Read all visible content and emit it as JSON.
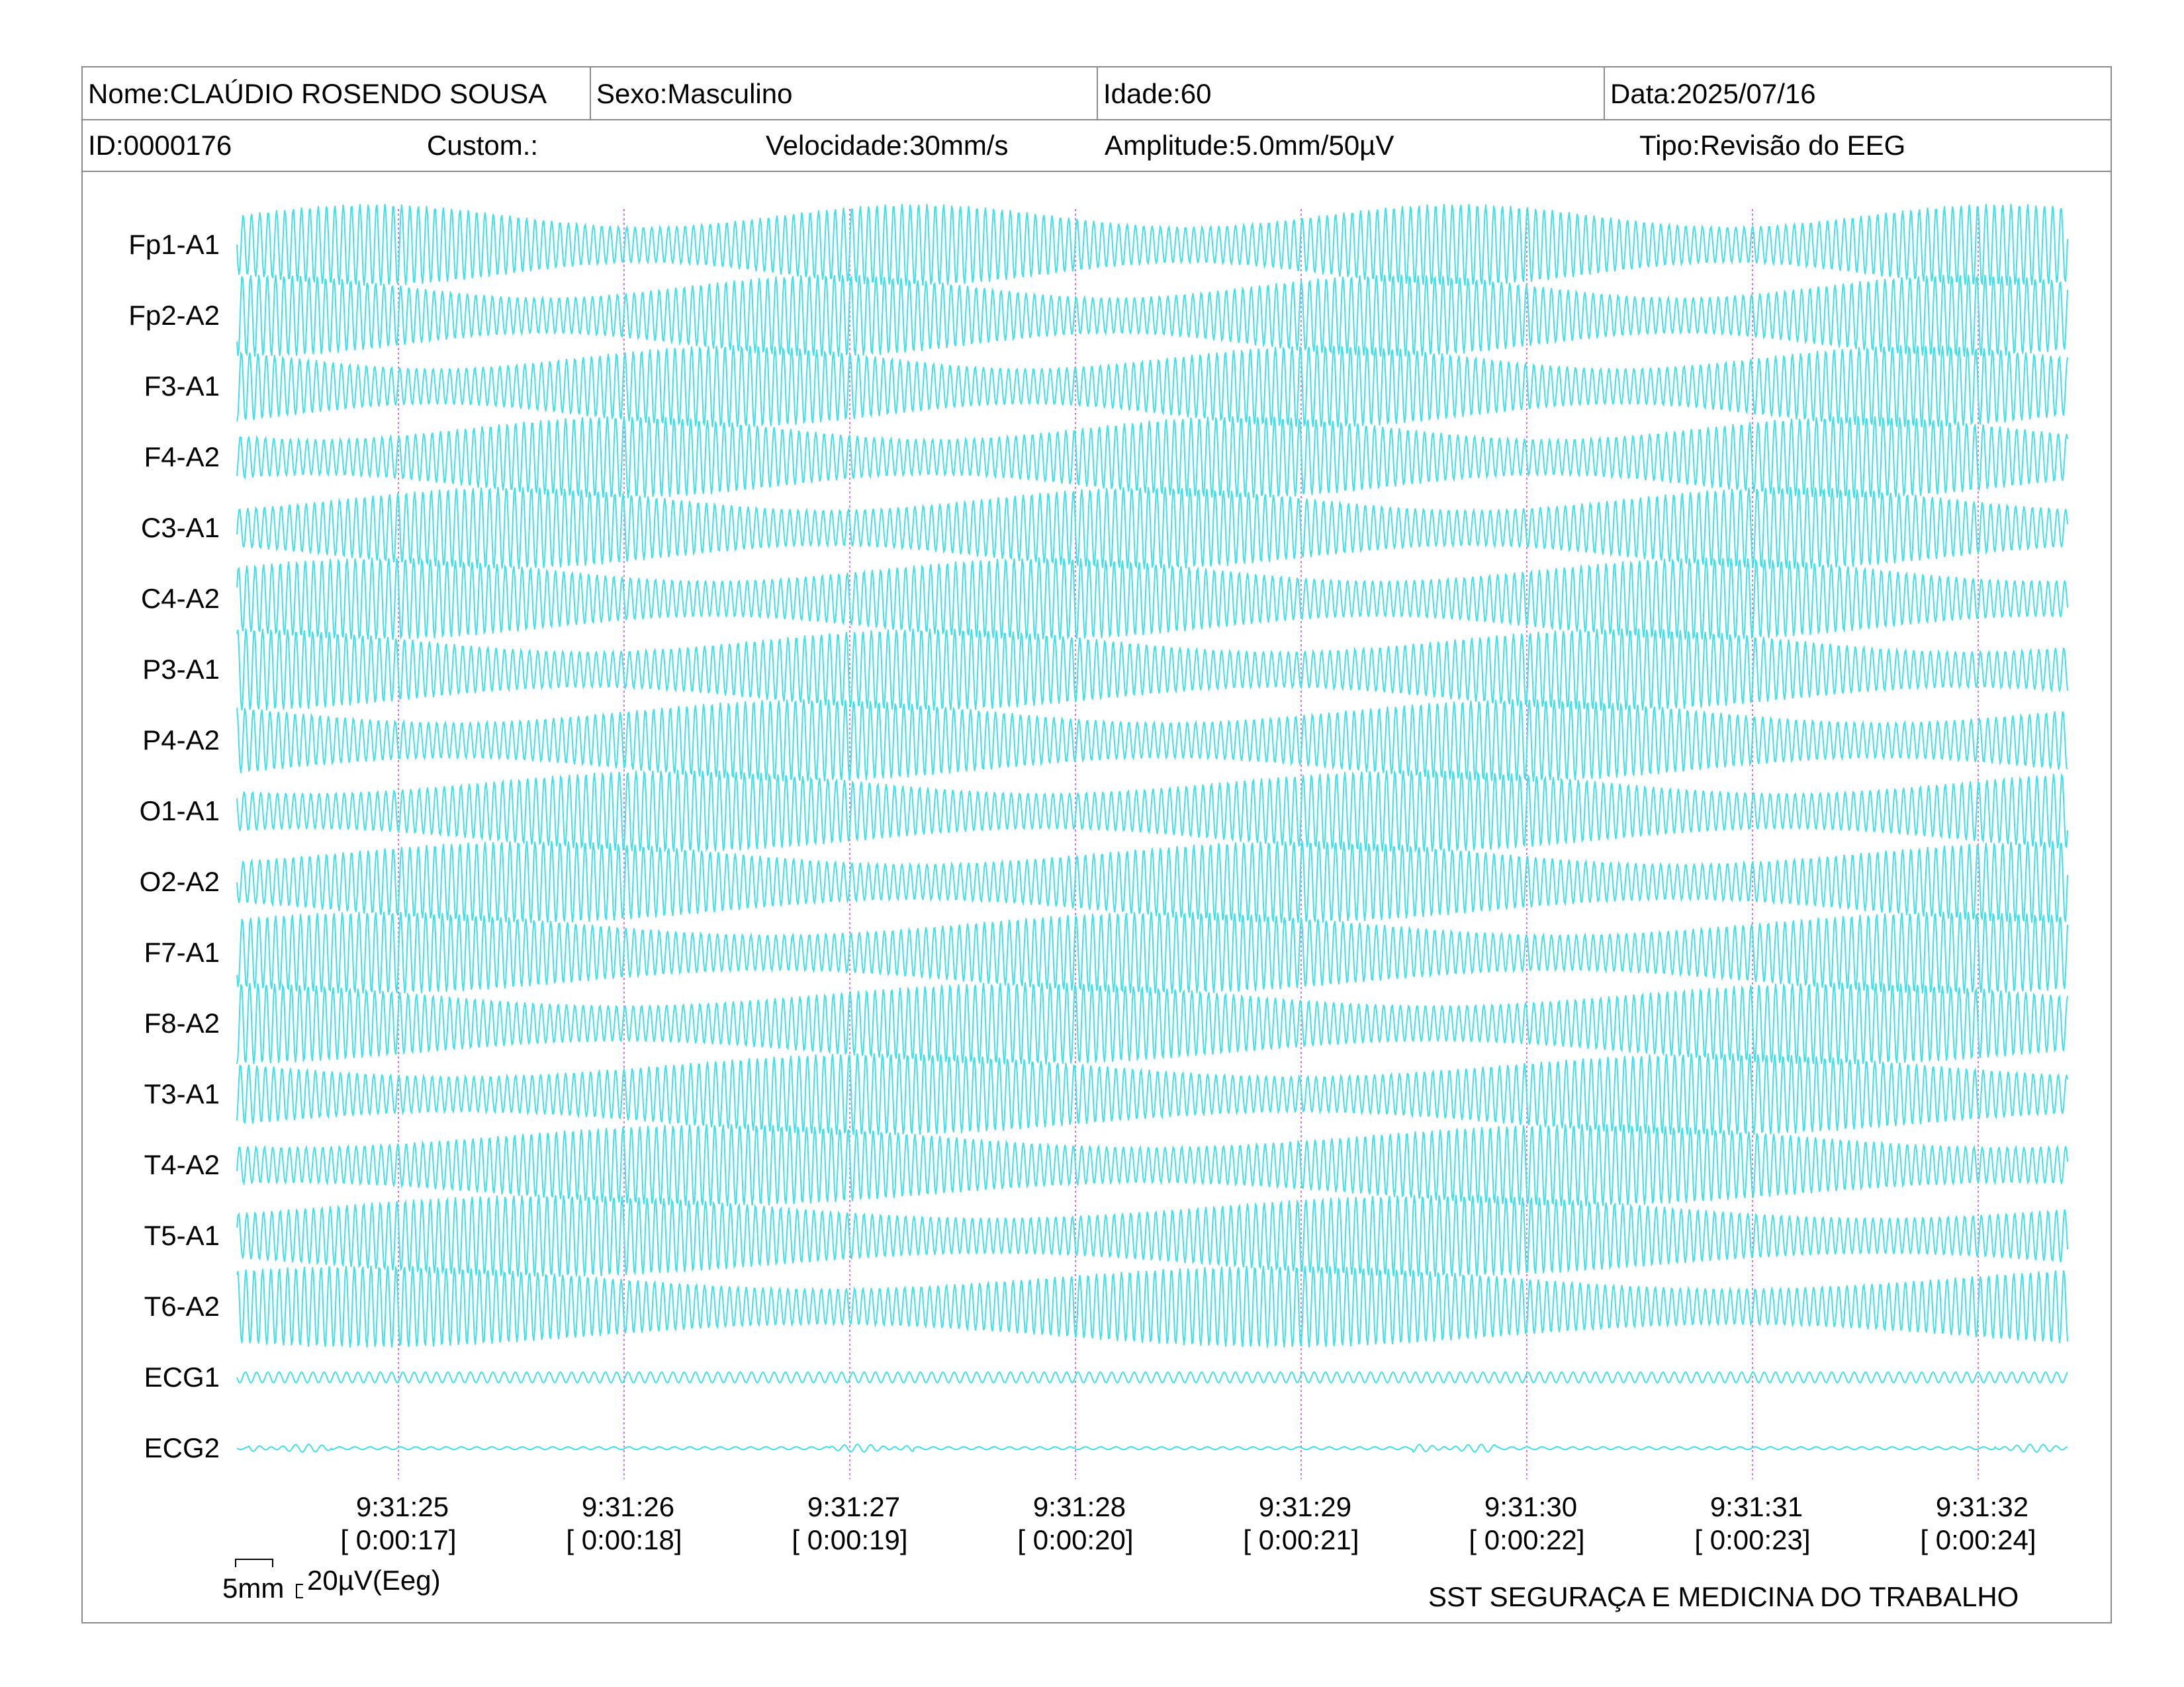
{
  "header": {
    "nome": "Nome:CLAÚDIO ROSENDO SOUSA",
    "sexo": "Sexo:Masculino",
    "idade": "Idade:60",
    "data": "Data:2025/07/16",
    "id": "ID:0000176",
    "custom": "Custom.:",
    "velocidade": "Velocidade:30mm/s",
    "amplitude": "Amplitude:5.0mm/50µV",
    "tipo": "Tipo:Revisão do EEG"
  },
  "colors": {
    "trace": "#3fe0e6",
    "marker": "#e070e0",
    "border": "#8a8a8a",
    "text": "#000000"
  },
  "chart_data": {
    "type": "line",
    "channels": [
      "Fp1-A1",
      "Fp2-A2",
      "F3-A1",
      "F4-A2",
      "C3-A1",
      "C4-A2",
      "P3-A1",
      "P4-A2",
      "O1-A1",
      "O2-A2",
      "F7-A1",
      "F8-A2",
      "T3-A1",
      "T4-A2",
      "T5-A1",
      "T6-A2",
      "ECG1",
      "ECG2"
    ],
    "time_marks": [
      {
        "clock": "9:31:25",
        "elapsed": "[ 0:00:17]"
      },
      {
        "clock": "9:31:26",
        "elapsed": "[ 0:00:18]"
      },
      {
        "clock": "9:31:27",
        "elapsed": "[ 0:00:19]"
      },
      {
        "clock": "9:31:28",
        "elapsed": "[ 0:00:20]"
      },
      {
        "clock": "9:31:29",
        "elapsed": "[ 0:00:21]"
      },
      {
        "clock": "9:31:30",
        "elapsed": "[ 0:00:22]"
      },
      {
        "clock": "9:31:31",
        "elapsed": "[ 0:00:23]"
      },
      {
        "clock": "9:31:32",
        "elapsed": "[ 0:00:24]"
      }
    ]
  },
  "scale_bar": {
    "time_label": "5mm",
    "amp_label": "20µV(Eeg)"
  },
  "footer": {
    "organization": "SST SEGURAÇA E MEDICINA DO TRABALHO"
  }
}
